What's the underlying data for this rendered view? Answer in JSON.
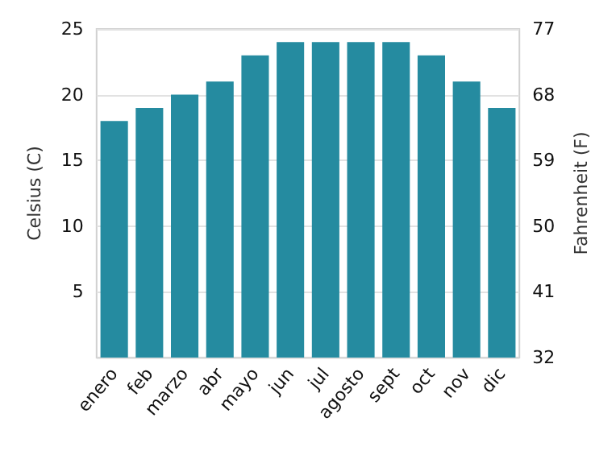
{
  "chart_data": {
    "type": "bar",
    "ylabel": "Celsius (C)",
    "y2label": "Fahrenheit (F)",
    "categories": [
      "enero",
      "feb",
      "marzo",
      "abr",
      "mayo",
      "jun",
      "jul",
      "agosto",
      "sept",
      "oct",
      "nov",
      "dic"
    ],
    "values": [
      18,
      19,
      20,
      21,
      23,
      24,
      24,
      24,
      24,
      23,
      21,
      19
    ],
    "color": "#258ba0",
    "ylim": [
      0,
      25
    ],
    "yticks": [
      {
        "value": 0,
        "label": null
      },
      5,
      10,
      15,
      20,
      25
    ],
    "y2lim": [
      32,
      77
    ],
    "y2ticks": [
      32,
      41,
      50,
      59,
      68,
      77
    ],
    "grid": "y"
  }
}
